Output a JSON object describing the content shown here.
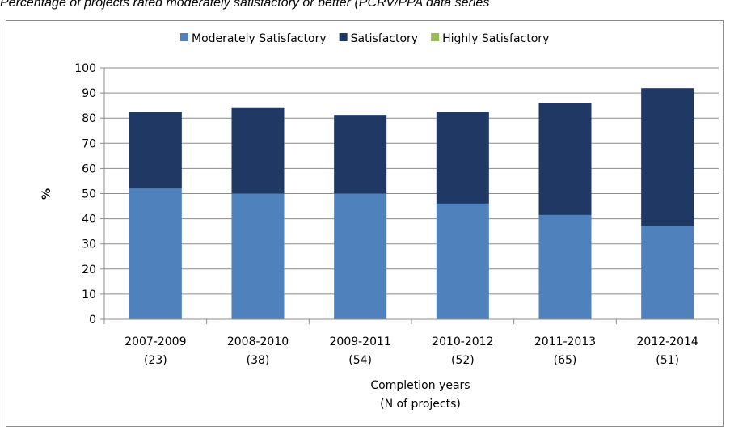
{
  "chart_data": {
    "type": "bar",
    "stacked": true,
    "title": "Percentage of projects rated moderately satisfactory or better (PCRV/PPA data series",
    "ylabel": "%",
    "xlabel": [
      "Completion years",
      "(N of projects)"
    ],
    "ylim": [
      0,
      100
    ],
    "yticks": [
      0,
      10,
      20,
      30,
      40,
      50,
      60,
      70,
      80,
      90,
      100
    ],
    "grid": true,
    "legend_position": "top",
    "categories": [
      [
        "2007-2009",
        "(23)"
      ],
      [
        "2008-2010",
        "(38)"
      ],
      [
        "2009-2011",
        "(54)"
      ],
      [
        "2010-2012",
        "(52)"
      ],
      [
        "2011-2013",
        "(65)"
      ],
      [
        "2012-2014",
        "(51)"
      ]
    ],
    "series": [
      {
        "name": "Moderately Satisfactory",
        "color": "#4f81bd",
        "values": [
          52,
          50,
          50,
          46,
          41.5,
          37.3
        ]
      },
      {
        "name": "Satisfactory",
        "color": "#1f3864",
        "values": [
          30.5,
          34,
          31.3,
          36.5,
          44.5,
          54.6
        ]
      },
      {
        "name": "Highly Satisfactory",
        "color": "#9bbb59",
        "values": [
          0,
          0,
          0,
          0,
          0,
          0
        ]
      }
    ]
  }
}
